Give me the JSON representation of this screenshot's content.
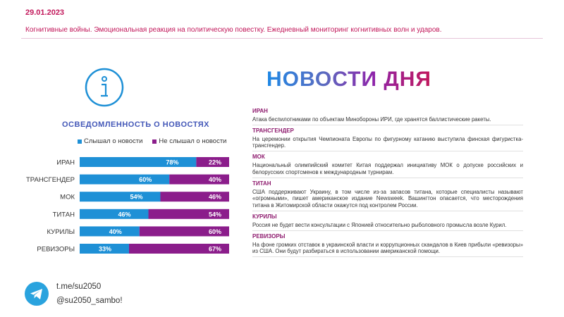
{
  "header": {
    "date": "29.01.2023",
    "subtitle": "Когнитивные войны. Эмоциональная реакция на политическую повестку. Ежедневный мониторинг когнитивных волн и ударов."
  },
  "awareness": {
    "title": "ОСВЕДОМЛЕННОСТЬ О НОВОСТЯХ",
    "icon": "info-icon"
  },
  "colors": {
    "heard": "#1e90d6",
    "not_heard": "#8b1d8b"
  },
  "chart_data": {
    "type": "bar",
    "orientation": "horizontal",
    "stacked": true,
    "categories": [
      "ИРАН",
      "ТРАНСГЕНДЕР",
      "МОК",
      "ТИТАН",
      "КУРИЛЫ",
      "РЕВИЗОРЫ"
    ],
    "series": [
      {
        "name": "Слышал о новости",
        "values": [
          78,
          60,
          54,
          46,
          40,
          33
        ],
        "labels": [
          "78%",
          "60%",
          "54%",
          "46%",
          "40%",
          "33%"
        ]
      },
      {
        "name": "Не слышал о новости",
        "values": [
          22,
          40,
          46,
          54,
          60,
          67
        ],
        "labels": [
          "22%",
          "40%",
          "46%",
          "54%",
          "60%",
          "67%"
        ]
      }
    ],
    "xlim": [
      0,
      100
    ],
    "legend": "top",
    "grid": false
  },
  "news": {
    "title": "НОВОСТИ ДНЯ",
    "items": [
      {
        "head": "ИРАН",
        "body": "Атака беспилотниками по объектам Минобороны ИРИ, где хранятся баллистические ракеты."
      },
      {
        "head": "ТРАНСГЕНДЕР",
        "body": "На церемонии открытия Чемпионата Европы по фигурному катанию выступила финская фигуристка-трансгендер."
      },
      {
        "head": "МОК",
        "body": "Национальный олимпийский комитет Китая поддержал инициативу МОК о допуске российских и белорусских спортсменов к международным турнирам."
      },
      {
        "head": "ТИТАН",
        "body": "США поддерживают Украину, в том числе из-за запасов титана, которые специалисты называют «огромными», пишет американское издание Newsweek. Вашингтон опасается, что месторождения титана в Житомирской области окажутся под контролем России."
      },
      {
        "head": "КУРИЛЫ",
        "body": "Россия не будет вести консультации с Японией относительно рыболовного промысла возле Курил."
      },
      {
        "head": "РЕВИЗОРЫ",
        "body": "На фоне громких отставок в украинской власти и коррупционных скандалов в Киев прибыли «ревизоры» из США. Они будут разбираться в использовании американской помощи."
      }
    ]
  },
  "footer": {
    "link": "t.me/su2050",
    "handle": "@su2050_sambo!",
    "icon": "telegram-icon"
  }
}
